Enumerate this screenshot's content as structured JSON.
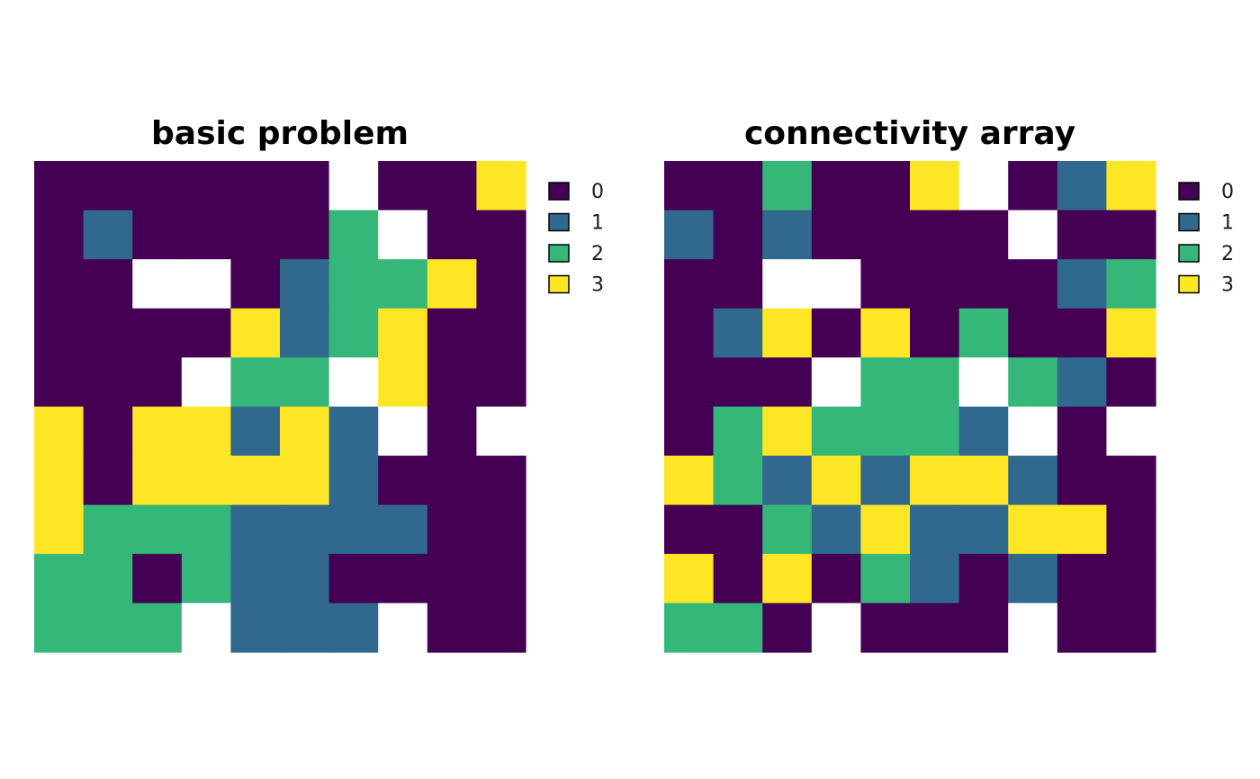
{
  "colors": {
    "0": "#440154",
    "1": "#31688E",
    "2": "#35B779",
    "3": "#FDE725",
    "na": "#FFFFFF"
  },
  "chart_data": [
    {
      "type": "heatmap",
      "title": "basic problem",
      "legend_position": "right",
      "legend": [
        "0",
        "1",
        "2",
        "3"
      ],
      "grid": [
        [
          0,
          0,
          0,
          0,
          0,
          0,
          null,
          0,
          0,
          3
        ],
        [
          0,
          1,
          0,
          0,
          0,
          0,
          2,
          null,
          0,
          0
        ],
        [
          0,
          0,
          null,
          null,
          0,
          1,
          2,
          2,
          3,
          0
        ],
        [
          0,
          0,
          0,
          0,
          3,
          1,
          2,
          3,
          0,
          0
        ],
        [
          0,
          0,
          0,
          null,
          2,
          2,
          null,
          3,
          0,
          0
        ],
        [
          3,
          0,
          3,
          3,
          1,
          3,
          1,
          null,
          0,
          null
        ],
        [
          3,
          0,
          3,
          3,
          3,
          3,
          1,
          0,
          0,
          0
        ],
        [
          3,
          2,
          2,
          2,
          1,
          1,
          1,
          1,
          0,
          0
        ],
        [
          2,
          2,
          0,
          2,
          1,
          1,
          0,
          0,
          0,
          0
        ],
        [
          2,
          2,
          2,
          null,
          1,
          1,
          1,
          null,
          0,
          0
        ]
      ]
    },
    {
      "type": "heatmap",
      "title": "connectivity array",
      "legend_position": "right",
      "legend": [
        "0",
        "1",
        "2",
        "3"
      ],
      "grid": [
        [
          0,
          0,
          2,
          0,
          0,
          3,
          null,
          0,
          1,
          3
        ],
        [
          1,
          0,
          1,
          0,
          0,
          0,
          0,
          null,
          0,
          0
        ],
        [
          0,
          0,
          null,
          null,
          0,
          0,
          0,
          0,
          1,
          2
        ],
        [
          0,
          1,
          3,
          0,
          3,
          0,
          2,
          0,
          0,
          3
        ],
        [
          0,
          0,
          0,
          null,
          2,
          2,
          null,
          2,
          1,
          0
        ],
        [
          0,
          2,
          3,
          2,
          2,
          2,
          1,
          null,
          0,
          null
        ],
        [
          3,
          2,
          1,
          3,
          1,
          3,
          3,
          1,
          0,
          0
        ],
        [
          0,
          0,
          2,
          1,
          3,
          1,
          1,
          3,
          3,
          0
        ],
        [
          3,
          0,
          3,
          0,
          2,
          1,
          0,
          1,
          0,
          0
        ],
        [
          2,
          2,
          0,
          null,
          0,
          0,
          0,
          null,
          0,
          0
        ]
      ]
    }
  ]
}
